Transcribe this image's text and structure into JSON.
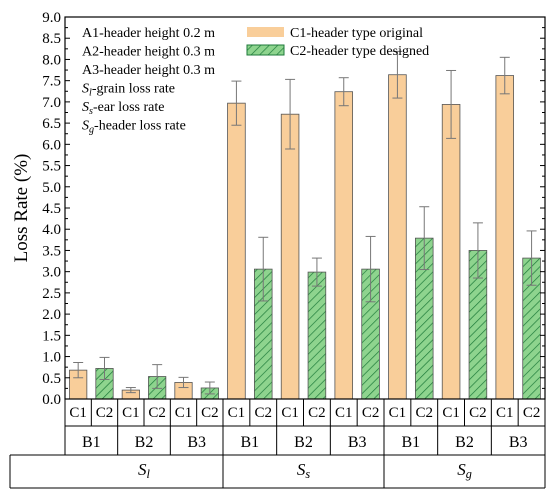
{
  "chart_data": {
    "type": "bar",
    "ylabel": "Loss Rate (%)",
    "ylim": [
      0,
      9.0
    ],
    "yticks": [
      "0.0",
      "0.5",
      "1.0",
      "1.5",
      "2.0",
      "2.5",
      "3.0",
      "3.5",
      "4.0",
      "4.5",
      "5.0",
      "5.5",
      "6.0",
      "6.5",
      "7.0",
      "7.5",
      "8.0",
      "8.5",
      "9.0"
    ],
    "legend_text": [
      {
        "prefix": "A1-header height 0.2 m",
        "sub": "",
        "suffix": ""
      },
      {
        "prefix": "A2-header height 0.3 m",
        "sub": "",
        "suffix": ""
      },
      {
        "prefix": "A3-header height 0.3 m",
        "sub": "",
        "suffix": ""
      },
      {
        "prefix": "S",
        "sub": "l",
        "suffix": "-grain loss rate"
      },
      {
        "prefix": "S",
        "sub": "s",
        "suffix": "-ear loss rate"
      },
      {
        "prefix": "S",
        "sub": "g",
        "suffix": "-header loss rate"
      }
    ],
    "series": [
      {
        "name": "C1-header type original",
        "code": "C1",
        "color": "#F9CE9A"
      },
      {
        "name": "C2-header type designed",
        "code": "C2",
        "color": "#8ED48E",
        "hatch": "#1E7A3A"
      }
    ],
    "groups": [
      {
        "label": "S",
        "sub": "l",
        "subgroups": [
          {
            "label": "B1",
            "values": [
              0.68,
              0.72
            ],
            "errors": [
              0.18,
              0.26
            ]
          },
          {
            "label": "B2",
            "values": [
              0.21,
              0.53
            ],
            "errors": [
              0.06,
              0.28
            ]
          },
          {
            "label": "B3",
            "values": [
              0.39,
              0.26
            ],
            "errors": [
              0.12,
              0.14
            ]
          }
        ]
      },
      {
        "label": "S",
        "sub": "s",
        "subgroups": [
          {
            "label": "B1",
            "values": [
              6.97,
              3.06
            ],
            "errors": [
              0.52,
              0.75
            ]
          },
          {
            "label": "B2",
            "values": [
              6.71,
              2.99
            ],
            "errors": [
              0.82,
              0.33
            ]
          },
          {
            "label": "B3",
            "values": [
              7.24,
              3.06
            ],
            "errors": [
              0.33,
              0.77
            ]
          }
        ]
      },
      {
        "label": "S",
        "sub": "g",
        "subgroups": [
          {
            "label": "B1",
            "values": [
              7.64,
              3.79
            ],
            "errors": [
              0.55,
              0.74
            ]
          },
          {
            "label": "B2",
            "values": [
              6.94,
              3.5
            ],
            "errors": [
              0.8,
              0.65
            ]
          },
          {
            "label": "B3",
            "values": [
              7.62,
              3.32
            ],
            "errors": [
              0.43,
              0.64
            ]
          }
        ]
      }
    ]
  }
}
